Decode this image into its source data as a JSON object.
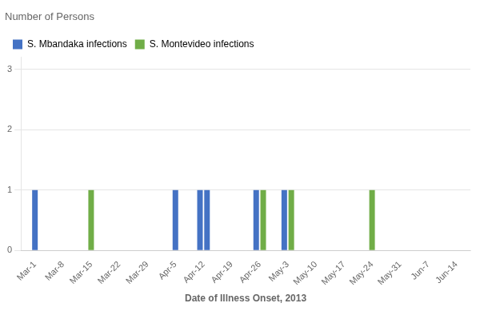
{
  "chart_data": {
    "type": "bar",
    "title": "Number of Persons",
    "x_label": "Date of Illness Onset, 2013",
    "categories": [
      "Mar-1",
      "Mar-8",
      "Mar-15",
      "Mar-22",
      "Mar-29",
      "Apr-5",
      "Apr-12",
      "Apr-19",
      "Apr-26",
      "May-3",
      "May-10",
      "May-17",
      "May-24",
      "May-31",
      "Jun-7",
      "Jun-14"
    ],
    "series": [
      {
        "name": "S. Mbandaka infections",
        "color": "#4472C4",
        "values": [
          1,
          null,
          null,
          null,
          null,
          1,
          1,
          null,
          1,
          1,
          null,
          null,
          null,
          null,
          null,
          null
        ]
      },
      {
        "name": "S. Mbandaka infections",
        "color": "#4472C4",
        "values": [
          null,
          null,
          null,
          null,
          null,
          null,
          1,
          null,
          null,
          null,
          null,
          null,
          null,
          null,
          null,
          null
        ]
      },
      {
        "name": "S. Montevideo infections",
        "color": "#70AD47",
        "values": [
          null,
          null,
          1,
          null,
          null,
          null,
          null,
          null,
          1,
          null,
          null,
          null,
          1,
          null,
          null,
          null
        ]
      },
      {
        "name": "S. Montevideo infections",
        "color": "#70AD47",
        "values": [
          null,
          null,
          null,
          null,
          null,
          null,
          null,
          null,
          null,
          1,
          null,
          null,
          null,
          null,
          null,
          null
        ]
      }
    ],
    "ylim": [
      0,
      3.2
    ],
    "yticks": [
      0,
      1,
      2,
      3
    ],
    "grid": true,
    "legend": "upper left"
  }
}
